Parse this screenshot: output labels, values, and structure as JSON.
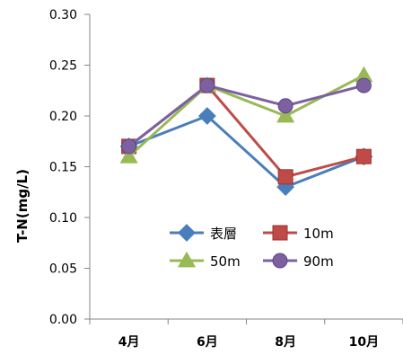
{
  "chart_data": {
    "type": "line",
    "ylabel": "T-N(mg/L)",
    "categories": [
      "4月",
      "6月",
      "8月",
      "10月"
    ],
    "ylim": [
      0.0,
      0.3
    ],
    "yticks": [
      "0.00",
      "0.05",
      "0.10",
      "0.15",
      "0.20",
      "0.25",
      "0.30"
    ],
    "grid": false,
    "legend_position": "inside, lower center",
    "series": [
      {
        "name": "表層",
        "marker": "diamond",
        "color": "#4a7ebb",
        "values": [
          0.17,
          0.2,
          0.13,
          0.16
        ]
      },
      {
        "name": "10m",
        "marker": "square",
        "color": "#be4b48",
        "values": [
          0.17,
          0.23,
          0.14,
          0.16
        ]
      },
      {
        "name": "50m",
        "marker": "triangle",
        "color": "#98b954",
        "values": [
          0.16,
          0.23,
          0.2,
          0.24
        ]
      },
      {
        "name": "90m",
        "marker": "circle",
        "color": "#7d60a0",
        "values": [
          0.17,
          0.23,
          0.21,
          0.23
        ]
      }
    ]
  }
}
